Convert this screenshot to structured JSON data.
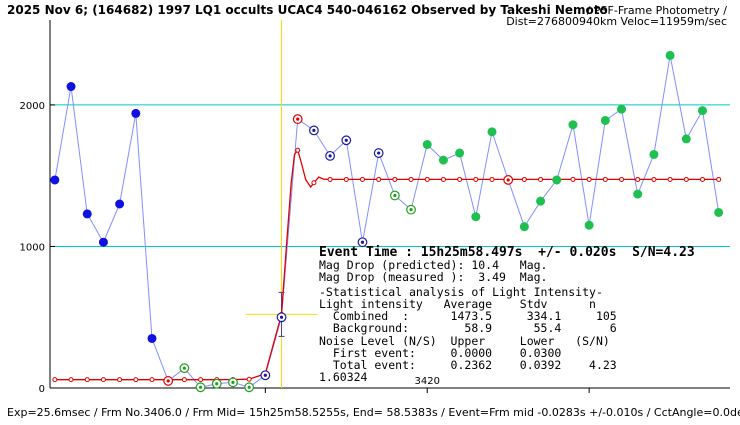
{
  "chart_data": {
    "type": "scatter",
    "title": "2025 Nov 6; (164682) 1997 LQ1 occults UCAC4 540-046162 Observed by Takeshi Nemoto",
    "subtitle_right_1": "/ PSF-Frame Photometry /",
    "subtitle_right_2": "Dist=276800940km Veloc=11959m/sec",
    "footer": "Exp=25.6msec / Frm No.3406.0 / Frm Mid= 15h25m58.5255s, End= 58.5383s / Event=Frm mid -0.0283s +/-0.010s / CctAngle=0.0deg",
    "xlabel": "",
    "ylabel": "",
    "xlim": [
      3396.7,
      3438.7
    ],
    "ylim": [
      0,
      2600
    ],
    "y_gridlines": [
      1000,
      2000
    ],
    "y_tick_labels": [
      "0",
      "1000",
      "2000"
    ],
    "x_tick_labels": [
      {
        "value": 3420,
        "label": "3420"
      }
    ],
    "x_minor_ticks": [
      3410,
      3430
    ],
    "grid": true,
    "event_frame": 3411.0,
    "event_bar_level": 520,
    "series": [
      {
        "name": "",
        "style": "filled-blue",
        "x": [
          3397,
          3398,
          3399,
          3400,
          3401,
          3402,
          3403
        ],
        "y": [
          1470,
          2130,
          1230,
          1030,
          1300,
          1940,
          350
        ]
      },
      {
        "name": "",
        "style": "filled-green",
        "x": [
          3404,
          3405,
          3406,
          3407,
          3408,
          3409,
          3410
        ],
        "y": [
          50,
          140,
          5,
          30,
          40,
          5,
          90
        ]
      },
      {
        "name": "",
        "style": "filled-green",
        "x": [
          3411,
          3412,
          3413,
          3414,
          3415,
          3416,
          3417,
          3418,
          3419,
          3420,
          3421,
          3422,
          3423,
          3424,
          3425,
          3426,
          3427,
          3428,
          3429,
          3430,
          3431,
          3432,
          3433,
          3434,
          3435,
          3436,
          3437,
          3438
        ],
        "y": [
          500,
          1900,
          1820,
          1640,
          1750,
          1030,
          1660,
          1360,
          1260,
          1720,
          1610,
          1660,
          1210,
          1810,
          1470,
          1140,
          1320,
          1470,
          1860,
          1150,
          1890,
          1970,
          1370,
          1650,
          2350,
          1760,
          1960,
          1240
        ]
      },
      {
        "name": "",
        "style": "model",
        "x": [
          3397,
          3398,
          3399,
          3400,
          3401,
          3402,
          3403,
          3404,
          3405,
          3406,
          3407,
          3408,
          3409,
          3410,
          3411,
          3411.3,
          3411.6,
          3411.8,
          3412,
          3412.2,
          3412.5,
          3412.8,
          3413,
          3413.3,
          3413.6,
          3414,
          3415,
          3416,
          3417,
          3418,
          3419,
          3420,
          3421,
          3422,
          3423,
          3424,
          3425,
          3426,
          3427,
          3428,
          3429,
          3430,
          3431,
          3432,
          3433,
          3434,
          3435,
          3436,
          3437,
          3438
        ],
        "y": [
          58.9,
          58.9,
          58.9,
          58.9,
          58.9,
          58.9,
          58.9,
          58.9,
          58.9,
          58.9,
          58.9,
          60,
          62,
          100,
          520,
          1000,
          1450,
          1650,
          1680,
          1600,
          1470,
          1420,
          1450,
          1490,
          1475,
          1473.5,
          1473.5,
          1473.5,
          1473.5,
          1473.5,
          1473.5,
          1473.5,
          1473.5,
          1473.5,
          1473.5,
          1473.5,
          1473.5,
          1473.5,
          1473.5,
          1473.5,
          1473.5,
          1473.5,
          1473.5,
          1473.5,
          1473.5,
          1473.5,
          1473.5,
          1473.5,
          1473.5,
          1473.5
        ]
      }
    ],
    "ring_markers": [
      {
        "x": 3404,
        "color": "#e00000"
      },
      {
        "x": 3405,
        "color": "#20a020"
      },
      {
        "x": 3406,
        "color": "#20a020"
      },
      {
        "x": 3407,
        "color": "#20a020"
      },
      {
        "x": 3408,
        "color": "#20a020"
      },
      {
        "x": 3409,
        "color": "#20a020"
      },
      {
        "x": 3410,
        "color": "#1a1aa0"
      },
      {
        "x": 3411,
        "color": "#1a1aa0"
      },
      {
        "x": 3412,
        "color": "#e00000"
      },
      {
        "x": 3413,
        "color": "#1a1aa0"
      },
      {
        "x": 3414,
        "color": "#1a1aa0"
      },
      {
        "x": 3415,
        "color": "#1a1aa0"
      },
      {
        "x": 3416,
        "color": "#1a1aa0"
      },
      {
        "x": 3417,
        "color": "#1a1aa0"
      },
      {
        "x": 3418,
        "color": "#20a020"
      },
      {
        "x": 3419,
        "color": "#20a020"
      },
      {
        "x": 3425,
        "color": "#e00000"
      }
    ],
    "colors": {
      "observed_line": "#8090ff",
      "pre_event_fill": "#1010e0",
      "occulted_fill": "#20c050",
      "model": "#e00000",
      "gridline": "#00c8c8",
      "event_line": "#f0e000",
      "event_bar": "#4040a0"
    }
  },
  "panel": {
    "event_time": "Event Time : 15h25m58.497s  +/- 0.020s  S/N=4.23",
    "mag_pred": "Mag Drop (predicted): 10.4   Mag.",
    "mag_meas": "Mag Drop (measured ):  3.49  Mag.",
    "stats_header": "-Statistical analysis of Light Intensity-",
    "li_header": "Light intensity   Average    Stdv      n",
    "combined": "  Combined  :      1473.5     334.1     105",
    "background": "  Background:        58.9      55.4       6",
    "noise_header": "Noise Level (N/S)  Upper     Lower   (S/N)",
    "first_event": "  First event:     0.0000    0.0300",
    "total_event": "  Total event:     0.2362    0.0392    4.23",
    "ratio": "1.60324"
  }
}
